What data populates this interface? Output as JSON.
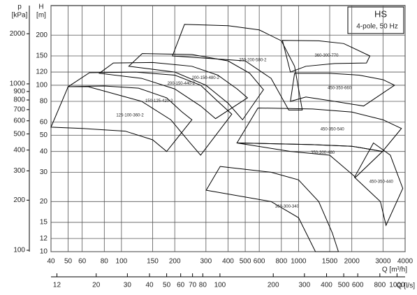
{
  "chart_data": {
    "type": "envelope",
    "title": "HS",
    "subtitle": "4-pole, 50 Hz",
    "x_label": "Q [m³/h]",
    "x2_label": "Q [l/s]",
    "y_label": [
      "H",
      "[m]"
    ],
    "y2_label": [
      "p",
      "[kPa]"
    ],
    "log_x": true,
    "log_y": true,
    "grid": true,
    "color": "#000000",
    "xlim": [
      40,
      4000
    ],
    "xticks": [
      40,
      50,
      60,
      80,
      100,
      150,
      200,
      300,
      400,
      500,
      600,
      800,
      1000,
      1500,
      2000,
      3000,
      4000
    ],
    "x2lim": [
      11.11,
      1111.11
    ],
    "x2ticks": [
      12,
      20,
      30,
      40,
      50,
      60,
      70,
      80,
      100,
      200,
      300,
      400,
      500,
      600,
      800,
      1000
    ],
    "ylim": [
      10,
      301
    ],
    "yticks": [
      10,
      12,
      15,
      20,
      30,
      40,
      50,
      60,
      80,
      100,
      120,
      150,
      200
    ],
    "y2lim": [
      98.1,
      2953
    ],
    "y2ticks": [
      100,
      200,
      300,
      400,
      500,
      600,
      700,
      800,
      900,
      1000,
      2000
    ],
    "series": [
      {
        "name": "125-100-360-2",
        "x": [
          40,
          50,
          80,
          125,
          180,
          220,
          250,
          180,
          150,
          105,
          60
        ],
        "y": [
          56,
          98,
          99,
          96,
          84,
          69,
          62,
          40,
          47,
          53,
          55
        ]
      },
      {
        "name": "150-125-420-2",
        "x": [
          66,
          120,
          200,
          280,
          350,
          420,
          280,
          240,
          190,
          130,
          65,
          50
        ],
        "y": [
          119,
          120,
          115,
          100,
          80,
          67,
          38,
          46,
          62,
          80,
          98,
          98
        ]
      },
      {
        "name": "200-150-440-2",
        "x": [
          90,
          150,
          250,
          350,
          450,
          515,
          340,
          280,
          200,
          130,
          75
        ],
        "y": [
          136,
          137,
          130,
          115,
          95,
          84,
          63,
          75,
          95,
          110,
          118
        ]
      },
      {
        "name": "200-150-480-2",
        "x": [
          131,
          250,
          400,
          530,
          634,
          483,
          400,
          300,
          200,
          110
        ],
        "y": [
          155,
          153,
          140,
          118,
          94,
          62,
          78,
          100,
          120,
          130
        ]
      },
      {
        "name": "250-200-580-2",
        "x": [
          227,
          400,
          600,
          800,
          950,
          1050,
          880,
          700,
          500,
          194
        ],
        "y": [
          232,
          228,
          215,
          185,
          130,
          71,
          71,
          110,
          140,
          150
        ]
      },
      {
        "name": "360-300-770",
        "x": [
          811,
          1300,
          1800,
          2530,
          2420,
          1600,
          1100,
          900
        ],
        "y": [
          186,
          185,
          178,
          150,
          136,
          135,
          130,
          120
        ]
      },
      {
        "name": "450-350-660",
        "x": [
          950,
          1500,
          2200,
          3000,
          3486,
          2330,
          1600,
          1100,
          900
        ],
        "y": [
          118,
          118,
          115,
          108,
          100,
          75,
          80,
          85,
          80
        ]
      },
      {
        "name": "450-350-540",
        "x": [
          590,
          1200,
          2000,
          3000,
          3813,
          2980,
          2000,
          1200,
          449
        ],
        "y": [
          73,
          72,
          69,
          62,
          55,
          40,
          43,
          44,
          45
        ]
      },
      {
        "name": "350-300-480",
        "x": [
          449,
          1200,
          2000,
          2980,
          2100,
          1500,
          900
        ],
        "y": [
          45,
          44,
          43,
          40,
          28,
          38,
          40
        ]
      },
      {
        "name": "450-350-440",
        "x": [
          2650,
          3300,
          3880,
          3120,
          2900,
          2070
        ],
        "y": [
          45,
          38,
          24,
          14.4,
          20,
          28
        ]
      },
      {
        "name": "360-300-340",
        "x": [
          361,
          700,
          1000,
          1300,
          1550,
          1680,
          1246,
          1000,
          700,
          301
        ],
        "y": [
          32.5,
          30,
          27,
          20,
          13,
          10,
          10,
          16,
          20,
          23.4
        ]
      }
    ]
  }
}
